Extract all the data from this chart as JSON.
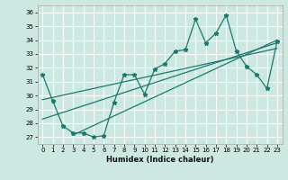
{
  "xlabel": "Humidex (Indice chaleur)",
  "bg_color": "#cce8e0",
  "grid_color": "#ffffff",
  "line_color": "#1a7a6e",
  "xlim": [
    -0.5,
    23.5
  ],
  "ylim": [
    26.5,
    36.5
  ],
  "xticks": [
    0,
    1,
    2,
    3,
    4,
    5,
    6,
    7,
    8,
    9,
    10,
    11,
    12,
    13,
    14,
    15,
    16,
    17,
    18,
    19,
    20,
    21,
    22,
    23
  ],
  "yticks": [
    27,
    28,
    29,
    30,
    31,
    32,
    33,
    34,
    35,
    36
  ],
  "main_line_x": [
    0,
    1,
    2,
    3,
    4,
    5,
    6,
    7,
    8,
    9,
    10,
    11,
    12,
    13,
    14,
    15,
    16,
    17,
    18,
    19,
    20,
    21,
    22,
    23
  ],
  "main_line_y": [
    31.5,
    29.6,
    27.8,
    27.3,
    27.3,
    27.0,
    27.1,
    29.5,
    31.5,
    31.5,
    30.1,
    31.9,
    32.3,
    33.2,
    33.3,
    35.5,
    33.8,
    34.5,
    35.8,
    33.2,
    32.1,
    31.5,
    30.5,
    33.9
  ],
  "reg_lines": [
    {
      "x0": 0,
      "y0": 29.7,
      "x1": 23,
      "y1": 33.4
    },
    {
      "x0": 0,
      "y0": 28.3,
      "x1": 23,
      "y1": 33.8
    },
    {
      "x0": 3,
      "y0": 27.15,
      "x1": 23,
      "y1": 34.0
    }
  ]
}
